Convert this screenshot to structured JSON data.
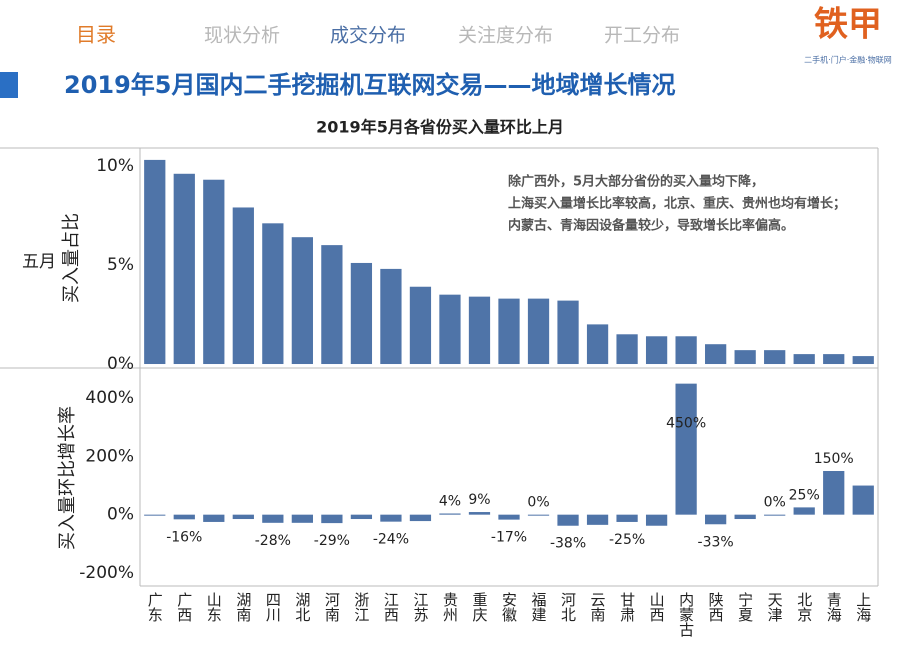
{
  "nav": [
    "目录",
    "现状分析",
    "成交分布",
    "关注度分布",
    "开工分布"
  ],
  "logo": {
    "name": "铁甲",
    "tagline": "二手机·门户·金融·物联网"
  },
  "slide_title": "2019年5月国内二手挖掘机互联网交易——地域增长情况",
  "chart_data": [
    {
      "type": "bar",
      "title": "2019年5月各省份买入量环比上月",
      "facet_label": "五月",
      "y_label": "买入量占比",
      "annotation": [
        "除广西外，5月大部分省份的买入量均下降，",
        "上海买入量增长比率较高，北京、重庆、贵州也均有增长；",
        "内蒙古、青海因设备量较少，导致增长比率偏高。"
      ],
      "categories": [
        "广东",
        "广西",
        "山东",
        "湖南",
        "四川",
        "湖北",
        "河南",
        "浙江",
        "江西",
        "江苏",
        "贵州",
        "重庆",
        "安徽",
        "福建",
        "河北",
        "云南",
        "甘肃",
        "山西",
        "内蒙古",
        "陕西",
        "宁夏",
        "天津",
        "北京",
        "青海",
        "上海"
      ],
      "values": [
        10.3,
        9.6,
        9.3,
        7.9,
        7.1,
        6.4,
        6.0,
        5.1,
        4.8,
        3.9,
        3.5,
        3.4,
        3.3,
        3.3,
        3.2,
        2.0,
        1.5,
        1.4,
        1.4,
        1.0,
        0.7,
        0.7,
        0.5,
        0.5,
        0.4
      ],
      "color": "#4f74a8",
      "ylim": [
        -0.1,
        10.8
      ],
      "yticks": [
        {
          "value": 0,
          "label": "0%"
        },
        {
          "value": 5,
          "label": "5%"
        },
        {
          "value": 10,
          "label": "10%"
        }
      ]
    },
    {
      "type": "bar",
      "y_label": "买入量环比增长率",
      "categories": [
        "广东",
        "广西",
        "山东",
        "湖南",
        "四川",
        "湖北",
        "河南",
        "浙江",
        "江西",
        "江苏",
        "贵州",
        "重庆",
        "安徽",
        "福建",
        "河北",
        "云南",
        "甘肃",
        "山西",
        "内蒙古",
        "陕西",
        "宁夏",
        "天津",
        "北京",
        "青海",
        "上海"
      ],
      "values": [
        -2,
        -16,
        -25,
        -15,
        -28,
        -28,
        -29,
        -15,
        -24,
        -22,
        4,
        9,
        -17,
        0,
        -38,
        -35,
        -25,
        -38,
        450,
        -33,
        -15,
        0,
        25,
        150,
        100
      ],
      "value_labels": [
        null,
        "-16%",
        null,
        null,
        "-28%",
        null,
        "-29%",
        null,
        "-24%",
        null,
        "4%",
        "9%",
        "-17%",
        "0%",
        "-38%",
        null,
        "-25%",
        null,
        "450%",
        "-33%",
        null,
        "0%",
        "25%",
        "150%",
        null
      ],
      "color": "#4f74a8",
      "ylim": [
        -245,
        490
      ],
      "yticks": [
        {
          "value": -200,
          "label": "-200%"
        },
        {
          "value": 0,
          "label": "0%"
        },
        {
          "value": 200,
          "label": "200%"
        },
        {
          "value": 400,
          "label": "400%"
        }
      ]
    }
  ]
}
